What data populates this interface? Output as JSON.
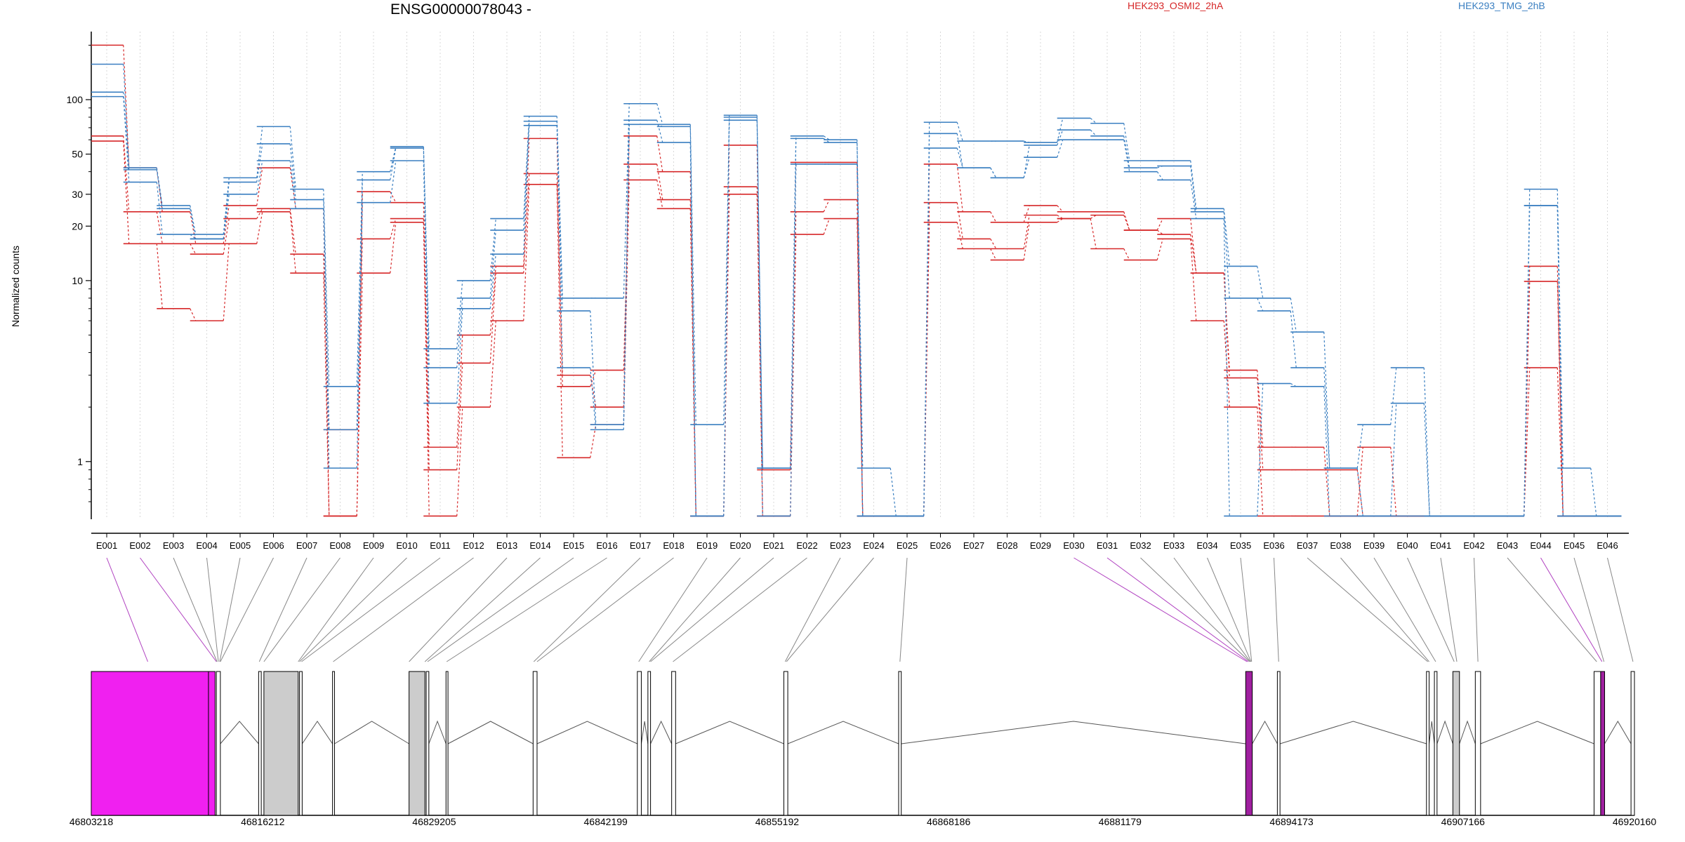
{
  "chart_data": {
    "type": "line",
    "title": "ENSG00000078043 -",
    "ylabel": "Normalized counts",
    "xlabel": "",
    "scale": "log",
    "y_ticks": [
      1,
      10,
      20,
      30,
      50,
      100
    ],
    "ylim": [
      0.48,
      260
    ],
    "grid": "vertical dotted",
    "categories": [
      "E001",
      "E002",
      "E003",
      "E004",
      "E005",
      "E006",
      "E007",
      "E008",
      "E009",
      "E010",
      "E011",
      "E012",
      "E013",
      "E014",
      "E015",
      "E016",
      "E017",
      "E018",
      "E019",
      "E020",
      "E021",
      "E022",
      "E023",
      "E024",
      "E025",
      "E026",
      "E027",
      "E028",
      "E029",
      "E030",
      "E031",
      "E032",
      "E033",
      "E034",
      "E035",
      "E036",
      "E037",
      "E038",
      "E039",
      "E040",
      "E041",
      "E042",
      "E043",
      "E044",
      "E045",
      "E046"
    ],
    "legend": [
      {
        "name": "HEK293_OSMI2_2hA",
        "color": "#d62728"
      },
      {
        "name": "HEK293_TMG_2hB",
        "color": "#3a7fc1"
      }
    ],
    "series": [
      {
        "group": "HEK293_OSMI2_2hA",
        "color": "#d62728",
        "values": [
          200,
          42,
          24,
          16,
          26,
          42,
          25,
          0.5,
          31,
          27,
          1.2,
          5,
          12,
          61,
          3,
          2,
          63,
          40,
          0.5,
          56,
          0.5,
          45,
          45,
          0.5,
          0.5,
          44,
          24,
          21,
          26,
          24,
          24,
          19,
          22,
          11,
          3.2,
          1.2,
          1.2,
          0.5,
          1.2,
          0.5,
          0.5,
          0.5,
          0.5,
          12,
          0.5,
          0.5
        ]
      },
      {
        "group": "HEK293_OSMI2_2hA",
        "color": "#d62728",
        "values": [
          63,
          24,
          16,
          14,
          22,
          25,
          14,
          1.5,
          17,
          22,
          0.9,
          3.5,
          11,
          39,
          2.6,
          3.2,
          44,
          28,
          0.5,
          33,
          0.9,
          24,
          28,
          0.5,
          0.5,
          27,
          17,
          15,
          23,
          22,
          23,
          19,
          18,
          11,
          2.9,
          0.9,
          0.9,
          0.9,
          0.5,
          0.5,
          0.5,
          0.5,
          0.5,
          9.9,
          0.5,
          0.5
        ]
      },
      {
        "group": "HEK293_OSMI2_2hA",
        "color": "#d62728",
        "values": [
          59,
          16,
          7,
          6,
          16,
          24,
          11,
          0.5,
          11,
          21,
          0.5,
          2,
          6,
          34,
          1.05,
          1.6,
          36,
          25,
          0.5,
          30,
          0.5,
          18,
          22,
          0.5,
          0.5,
          21,
          15,
          13,
          21,
          22,
          15,
          13,
          17,
          6,
          2,
          0.5,
          0.5,
          0.5,
          0.5,
          0.5,
          0.5,
          0.5,
          0.5,
          3.3,
          0.5,
          0.5
        ]
      },
      {
        "group": "HEK293_TMG_2hB",
        "color": "#3a7fc1",
        "values": [
          157,
          42,
          26,
          18,
          37,
          71,
          32,
          2.6,
          40,
          55,
          4.2,
          10,
          22,
          81,
          8,
          8,
          95,
          73,
          1.6,
          82,
          0.92,
          63,
          60,
          0.92,
          0.5,
          75,
          59,
          59,
          58,
          79,
          74,
          46,
          46,
          25,
          12,
          8,
          5.2,
          0.92,
          1.6,
          3.3,
          0.5,
          0.5,
          0.5,
          32,
          0.92,
          0.5
        ]
      },
      {
        "group": "HEK293_TMG_2hB",
        "color": "#3a7fc1",
        "values": [
          110,
          41,
          25,
          17,
          35,
          57,
          28,
          1.5,
          36,
          54,
          3.3,
          8,
          19,
          76,
          6.8,
          1.6,
          77,
          58,
          0.5,
          80,
          0.92,
          61,
          58,
          0.5,
          0.5,
          65,
          42,
          37,
          56,
          68,
          63,
          42,
          43,
          24,
          8,
          6.8,
          3.3,
          0.92,
          0.5,
          2.1,
          0.5,
          0.5,
          0.5,
          26,
          0.5,
          0.5
        ]
      },
      {
        "group": "HEK293_TMG_2hB",
        "color": "#3a7fc1",
        "values": [
          104,
          35,
          18,
          17,
          30,
          46,
          25,
          0.92,
          27,
          46,
          2.1,
          7,
          14,
          72,
          3.3,
          1.5,
          73,
          71,
          0.5,
          77,
          0.5,
          44,
          44,
          0.5,
          0.5,
          54,
          42,
          37,
          48,
          60,
          60,
          40,
          36,
          22,
          0.5,
          2.7,
          2.6,
          0.5,
          0.5,
          0.5,
          0.5,
          0.5,
          0.5,
          26,
          0.5,
          0.5
        ]
      }
    ],
    "gene_model": {
      "coordinate_labels": [
        "46803218",
        "46816212",
        "46829205",
        "46842199",
        "46855192",
        "46868186",
        "46881179",
        "46894173",
        "46907166",
        "46920160"
      ],
      "range": [
        46803218,
        46920160
      ],
      "exons": [
        {
          "start": 46803218,
          "end": 46812100,
          "fill": "#f020f0"
        },
        {
          "start": 46812100,
          "end": 46812600,
          "fill": "#f020f0"
        },
        {
          "start": 46812700,
          "end": 46813000,
          "fill": "#ffffff"
        },
        {
          "start": 46815900,
          "end": 46816100,
          "fill": "#ffffff"
        },
        {
          "start": 46816300,
          "end": 46818900,
          "fill": "#cccccc"
        },
        {
          "start": 46819000,
          "end": 46819200,
          "fill": "#ffffff"
        },
        {
          "start": 46821500,
          "end": 46821650,
          "fill": "#ffffff"
        },
        {
          "start": 46827300,
          "end": 46828500,
          "fill": "#cccccc"
        },
        {
          "start": 46828600,
          "end": 46828800,
          "fill": "#ffffff"
        },
        {
          "start": 46830100,
          "end": 46830250,
          "fill": "#ffffff"
        },
        {
          "start": 46836700,
          "end": 46837000,
          "fill": "#ffffff"
        },
        {
          "start": 46844600,
          "end": 46844900,
          "fill": "#ffffff"
        },
        {
          "start": 46845400,
          "end": 46845600,
          "fill": "#ffffff"
        },
        {
          "start": 46847200,
          "end": 46847500,
          "fill": "#ffffff"
        },
        {
          "start": 46855700,
          "end": 46856000,
          "fill": "#ffffff"
        },
        {
          "start": 46864400,
          "end": 46864600,
          "fill": "#ffffff"
        },
        {
          "start": 46890700,
          "end": 46891200,
          "fill": "#a020a0"
        },
        {
          "start": 46893100,
          "end": 46893300,
          "fill": "#ffffff"
        },
        {
          "start": 46904400,
          "end": 46904600,
          "fill": "#ffffff"
        },
        {
          "start": 46905000,
          "end": 46905200,
          "fill": "#ffffff"
        },
        {
          "start": 46906400,
          "end": 46906900,
          "fill": "#cccccc"
        },
        {
          "start": 46908100,
          "end": 46908500,
          "fill": "#ffffff"
        },
        {
          "start": 46917100,
          "end": 46917600,
          "fill": "#ffffff"
        },
        {
          "start": 46917600,
          "end": 46917900,
          "fill": "#a020a0"
        },
        {
          "start": 46919900,
          "end": 46920160,
          "fill": "#ffffff"
        }
      ],
      "connectors": [
        {
          "exon": "E001",
          "target": 46807500,
          "color": "#b040c0"
        },
        {
          "exon": "E002",
          "target": 46812700,
          "color": "#b040c0"
        },
        {
          "exon": "E003",
          "target": 46812750,
          "color": "#888888"
        },
        {
          "exon": "E004",
          "target": 46812850,
          "color": "#888888"
        },
        {
          "exon": "E005",
          "target": 46812950,
          "color": "#888888"
        },
        {
          "exon": "E006",
          "target": 46813000,
          "color": "#888888"
        },
        {
          "exon": "E007",
          "target": 46815950,
          "color": "#888888"
        },
        {
          "exon": "E008",
          "target": 46816300,
          "color": "#888888"
        },
        {
          "exon": "E009",
          "target": 46818900,
          "color": "#888888"
        },
        {
          "exon": "E010",
          "target": 46819000,
          "color": "#888888"
        },
        {
          "exon": "E011",
          "target": 46819150,
          "color": "#888888"
        },
        {
          "exon": "E012",
          "target": 46821550,
          "color": "#888888"
        },
        {
          "exon": "E013",
          "target": 46827300,
          "color": "#888888"
        },
        {
          "exon": "E014",
          "target": 46828500,
          "color": "#888888"
        },
        {
          "exon": "E015",
          "target": 46828700,
          "color": "#888888"
        },
        {
          "exon": "E016",
          "target": 46830150,
          "color": "#888888"
        },
        {
          "exon": "E017",
          "target": 46836750,
          "color": "#888888"
        },
        {
          "exon": "E018",
          "target": 46837000,
          "color": "#888888"
        },
        {
          "exon": "E019",
          "target": 46844700,
          "color": "#888888"
        },
        {
          "exon": "E020",
          "target": 46845500,
          "color": "#888888"
        },
        {
          "exon": "E021",
          "target": 46845600,
          "color": "#888888"
        },
        {
          "exon": "E022",
          "target": 46847300,
          "color": "#888888"
        },
        {
          "exon": "E023",
          "target": 46855800,
          "color": "#888888"
        },
        {
          "exon": "E024",
          "target": 46855900,
          "color": "#888888"
        },
        {
          "exon": "E025",
          "target": 46864500,
          "color": "#888888"
        },
        {
          "exon": "E030",
          "target": 46890800,
          "color": "#b040c0"
        },
        {
          "exon": "E031",
          "target": 46890900,
          "color": "#b040c0"
        },
        {
          "exon": "E032",
          "target": 46891000,
          "color": "#888888"
        },
        {
          "exon": "E033",
          "target": 46891050,
          "color": "#888888"
        },
        {
          "exon": "E034",
          "target": 46891100,
          "color": "#888888"
        },
        {
          "exon": "E035",
          "target": 46891150,
          "color": "#888888"
        },
        {
          "exon": "E036",
          "target": 46893200,
          "color": "#888888"
        },
        {
          "exon": "E037",
          "target": 46904500,
          "color": "#888888"
        },
        {
          "exon": "E038",
          "target": 46904600,
          "color": "#888888"
        },
        {
          "exon": "E039",
          "target": 46905100,
          "color": "#888888"
        },
        {
          "exon": "E040",
          "target": 46906500,
          "color": "#888888"
        },
        {
          "exon": "E041",
          "target": 46906700,
          "color": "#888888"
        },
        {
          "exon": "E042",
          "target": 46908300,
          "color": "#888888"
        },
        {
          "exon": "E043",
          "target": 46917300,
          "color": "#888888"
        },
        {
          "exon": "E044",
          "target": 46917700,
          "color": "#b040c0"
        },
        {
          "exon": "E045",
          "target": 46917850,
          "color": "#888888"
        },
        {
          "exon": "E046",
          "target": 46920050,
          "color": "#888888"
        }
      ]
    }
  }
}
